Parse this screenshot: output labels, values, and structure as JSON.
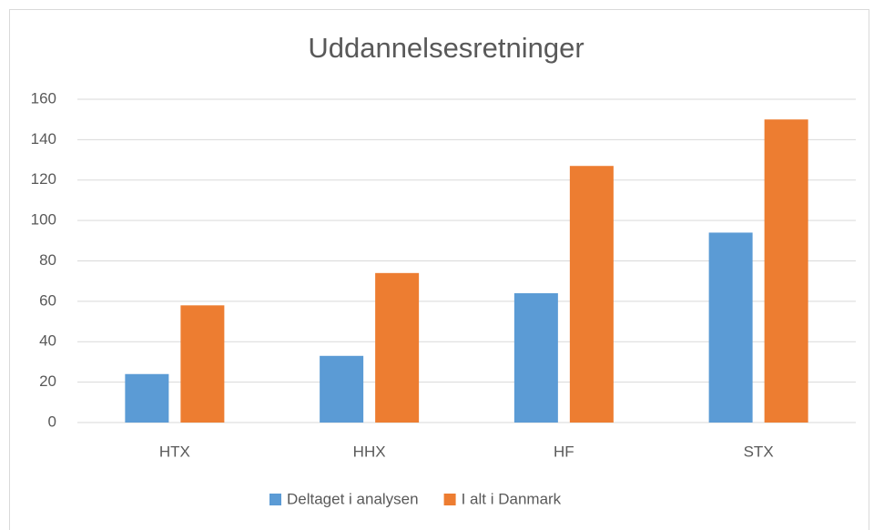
{
  "chart_data": {
    "type": "bar",
    "title": "Uddannelsesretninger",
    "categories": [
      "HTX",
      "HHX",
      "HF",
      "STX"
    ],
    "series": [
      {
        "name": "Deltaget i analysen",
        "color": "#5b9bd5",
        "values": [
          24,
          33,
          64,
          94
        ]
      },
      {
        "name": "I alt i Danmark",
        "color": "#ed7d31",
        "values": [
          58,
          74,
          127,
          150
        ]
      }
    ],
    "ylim": [
      0,
      160
    ],
    "yticks": [
      0,
      20,
      40,
      60,
      80,
      100,
      120,
      140,
      160
    ],
    "grid": true,
    "legend": "bottom"
  }
}
